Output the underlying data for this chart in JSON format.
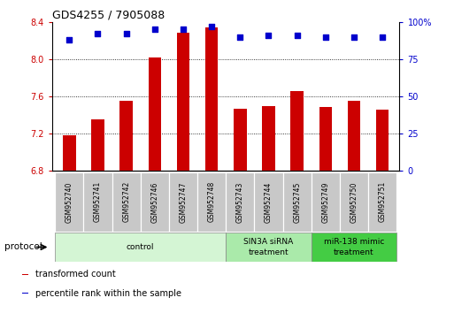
{
  "title": "GDS4255 / 7905088",
  "samples": [
    "GSM952740",
    "GSM952741",
    "GSM952742",
    "GSM952746",
    "GSM952747",
    "GSM952748",
    "GSM952743",
    "GSM952744",
    "GSM952745",
    "GSM952749",
    "GSM952750",
    "GSM952751"
  ],
  "transformed_count": [
    7.18,
    7.35,
    7.55,
    8.02,
    8.28,
    8.34,
    7.47,
    7.49,
    7.66,
    7.48,
    7.55,
    7.46
  ],
  "percentile_rank": [
    88,
    92,
    92,
    95,
    95,
    97,
    90,
    91,
    91,
    90,
    90,
    90
  ],
  "bar_color": "#cc0000",
  "dot_color": "#0000cc",
  "ylim_left": [
    6.8,
    8.4
  ],
  "ylim_right": [
    0,
    100
  ],
  "yticks_left": [
    6.8,
    7.2,
    7.6,
    8.0,
    8.4
  ],
  "yticks_right": [
    0,
    25,
    50,
    75,
    100
  ],
  "ytick_labels_right": [
    "0",
    "25",
    "50",
    "75",
    "100%"
  ],
  "groups": [
    {
      "label": "control",
      "start": 0,
      "end": 6,
      "color": "#d4f5d4"
    },
    {
      "label": "SIN3A siRNA\ntreatment",
      "start": 6,
      "end": 9,
      "color": "#aaeaaa"
    },
    {
      "label": "miR-138 mimic\ntreatment",
      "start": 9,
      "end": 12,
      "color": "#44cc44"
    }
  ],
  "bar_bottom": 6.8,
  "bar_width": 0.45,
  "grid_color": "#000000",
  "legend_items": [
    {
      "label": "transformed count",
      "color": "#cc0000"
    },
    {
      "label": "percentile rank within the sample",
      "color": "#0000cc"
    }
  ],
  "protocol_label": "protocol"
}
